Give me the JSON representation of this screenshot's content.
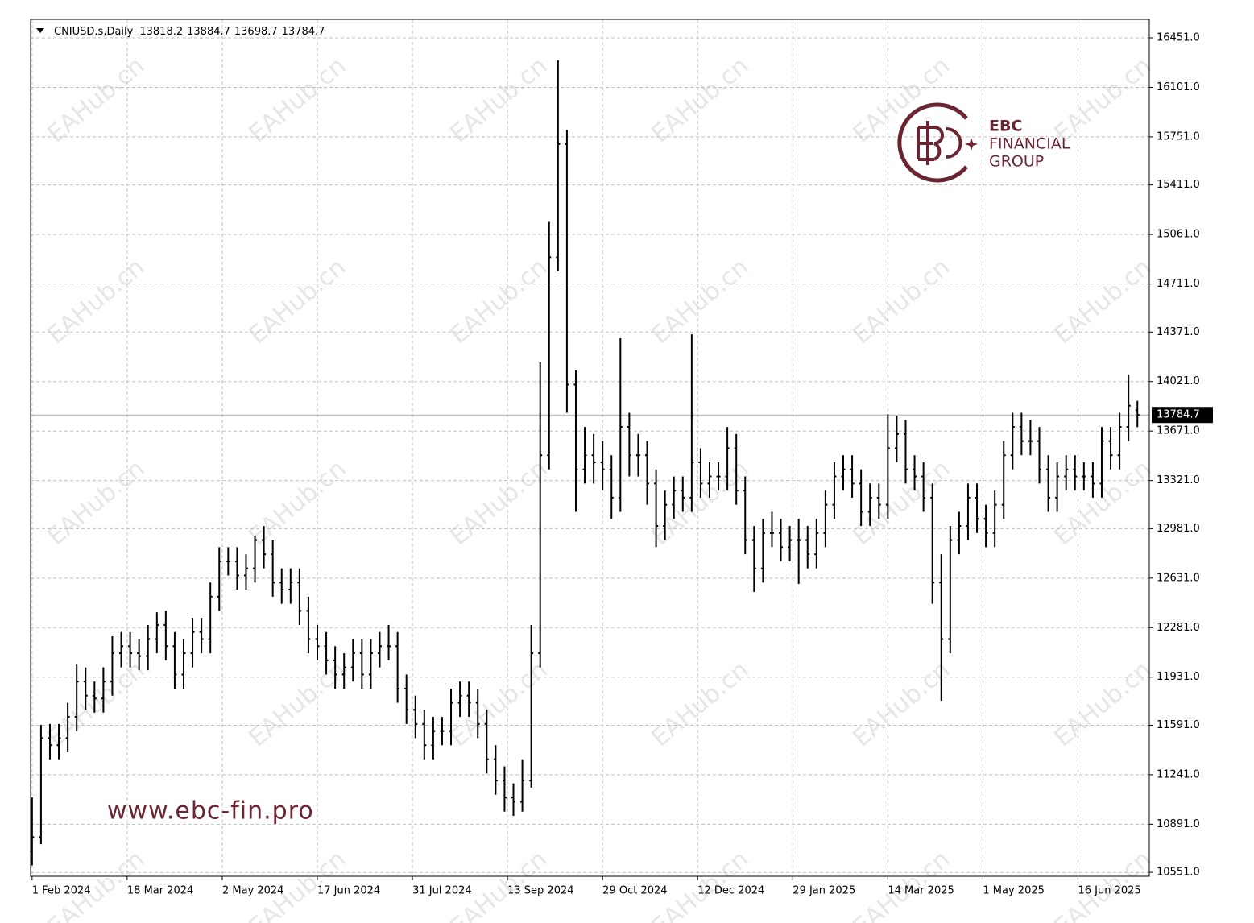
{
  "chart_data": {
    "type": "ohlc",
    "title": "CNIUSD.s,Daily",
    "watermark": "EAHub.cn",
    "annotations": [
      "www.ebc-fin.pro"
    ],
    "logo": [
      "EBC",
      "FINANCIAL",
      "GROUP"
    ],
    "color": "#000000",
    "grid": true,
    "current_price_line": true,
    "ylim": [
      10523,
      16582
    ],
    "xlim": [
      -0.5,
      376
    ],
    "yticks": [
      {
        "value": 16451,
        "label": "16451.0"
      },
      {
        "value": 16101,
        "label": "16101.0"
      },
      {
        "value": 15751,
        "label": "15751.0"
      },
      {
        "value": 15411,
        "label": "15411.0"
      },
      {
        "value": 15061,
        "label": "15061.0"
      },
      {
        "value": 14711,
        "label": "14711.0"
      },
      {
        "value": 14371,
        "label": "14371.0"
      },
      {
        "value": 14021,
        "label": "14021.0"
      },
      {
        "value": 13671,
        "label": "13671.0"
      },
      {
        "value": 13321,
        "label": "13321.0"
      },
      {
        "value": 12981,
        "label": "12981.0"
      },
      {
        "value": 12631,
        "label": "12631.0"
      },
      {
        "value": 12281,
        "label": "12281.0"
      },
      {
        "value": 11931,
        "label": "11931.0"
      },
      {
        "value": 11591,
        "label": "11591.0"
      },
      {
        "value": 11241,
        "label": "11241.0"
      },
      {
        "value": 10891,
        "label": "10891.0"
      },
      {
        "value": 10551,
        "label": "10551.0"
      }
    ],
    "xticks": [
      {
        "value": 0,
        "label": "1 Feb 2024"
      },
      {
        "value": 32,
        "label": "18 Mar 2024"
      },
      {
        "value": 64,
        "label": "2 May 2024"
      },
      {
        "value": 96,
        "label": "17 Jun 2024"
      },
      {
        "value": 128,
        "label": "31 Jul 2024"
      },
      {
        "value": 160,
        "label": "13 Sep 2024"
      },
      {
        "value": 192,
        "label": "29 Oct 2024"
      },
      {
        "value": 224,
        "label": "12 Dec 2024"
      },
      {
        "value": 256,
        "label": "29 Jan 2025"
      },
      {
        "value": 288,
        "label": "14 Mar 2025"
      },
      {
        "value": 320,
        "label": "1 May 2025"
      },
      {
        "value": 352,
        "label": "16 Jun 2025"
      }
    ],
    "x": [
      0,
      3,
      6,
      9,
      12,
      15,
      18,
      21,
      24,
      27,
      30,
      33,
      36,
      39,
      42,
      45,
      48,
      51,
      54,
      57,
      60,
      63,
      66,
      69,
      72,
      75,
      78,
      81,
      84,
      87,
      90,
      93,
      96,
      99,
      102,
      105,
      108,
      111,
      114,
      117,
      120,
      123,
      126,
      129,
      132,
      135,
      138,
      141,
      144,
      147,
      150,
      153,
      156,
      159,
      162,
      165,
      168,
      171,
      174,
      177,
      180,
      183,
      186,
      189,
      192,
      195,
      198,
      201,
      204,
      207,
      210,
      213,
      216,
      219,
      222,
      225,
      228,
      231,
      234,
      237,
      240,
      243,
      246,
      249,
      252,
      255,
      258,
      261,
      264,
      267,
      270,
      273,
      276,
      279,
      282,
      285,
      288,
      291,
      294,
      297,
      300,
      303,
      306,
      309,
      312,
      315,
      318,
      321,
      324,
      327,
      330,
      333,
      336,
      339,
      342,
      345,
      348,
      351,
      354,
      357,
      360,
      363,
      366,
      369,
      372
    ],
    "open": [
      10700,
      10800,
      11500,
      11450,
      11500,
      11650,
      11900,
      11800,
      11780,
      11900,
      12100,
      12150,
      12100,
      12080,
      12200,
      12300,
      12150,
      11950,
      12100,
      12250,
      12200,
      12500,
      12750,
      12750,
      12650,
      12700,
      12900,
      12800,
      12600,
      12550,
      12600,
      12400,
      12200,
      12150,
      12050,
      11950,
      12000,
      12100,
      11950,
      12100,
      12150,
      12150,
      11850,
      11700,
      11600,
      11450,
      11550,
      11550,
      11750,
      11800,
      11750,
      11600,
      11350,
      11200,
      11080,
      11050,
      11200,
      12100,
      13500,
      14900,
      15700,
      14000,
      13400,
      13500,
      13450,
      13400,
      13200,
      13700,
      13500,
      13500,
      13300,
      13000,
      13150,
      13250,
      13200,
      13450,
      13300,
      13350,
      13350,
      13550,
      13250,
      12900,
      12700,
      12950,
      12950,
      12850,
      12900,
      12900,
      12800,
      12950,
      13150,
      13350,
      13400,
      13300,
      13100,
      13200,
      13150,
      13550,
      13650,
      13400,
      13350,
      13200,
      12600,
      12200,
      12900,
      13000,
      13200,
      13050,
      12950,
      13150,
      13500,
      13700,
      13600,
      13600,
      13400,
      13200,
      13350,
      13400,
      13350,
      13350,
      13300,
      13600,
      13500,
      13700,
      13818.2
    ],
    "high": [
      11081,
      11593,
      11600,
      11600,
      11750,
      12020,
      12000,
      11900,
      12000,
      12220,
      12250,
      12250,
      12200,
      12300,
      12390,
      12400,
      12250,
      12200,
      12350,
      12350,
      12600,
      12850,
      12850,
      12850,
      12800,
      12932,
      13000,
      12900,
      12700,
      12700,
      12700,
      12500,
      12300,
      12250,
      12150,
      12100,
      12200,
      12200,
      12200,
      12250,
      12300,
      12250,
      11950,
      11800,
      11700,
      11650,
      11650,
      11850,
      11900,
      11900,
      11850,
      11700,
      11450,
      11300,
      11180,
      11350,
      12300,
      14156,
      15150,
      16292,
      15800,
      14100,
      13700,
      13650,
      13600,
      13500,
      14327,
      13800,
      13650,
      13600,
      13400,
      13250,
      13350,
      13350,
      14355,
      13550,
      13450,
      13450,
      13700,
      13650,
      13350,
      13000,
      13050,
      13100,
      13050,
      13000,
      13050,
      13000,
      13050,
      13250,
      13450,
      13500,
      13500,
      13400,
      13300,
      13300,
      13790,
      13780,
      13750,
      13500,
      13450,
      13300,
      12800,
      13000,
      13100,
      13300,
      13300,
      13150,
      13250,
      13600,
      13800,
      13800,
      13750,
      13700,
      13500,
      13450,
      13500,
      13500,
      13450,
      13450,
      13700,
      13700,
      13800,
      14070,
      13884.7
    ],
    "low": [
      10600,
      10750,
      11350,
      11350,
      11400,
      11550,
      11700,
      11680,
      11680,
      11800,
      12000,
      12000,
      11980,
      11980,
      12100,
      12050,
      11850,
      11850,
      12000,
      12100,
      12100,
      12400,
      12650,
      12550,
      12550,
      12600,
      12700,
      12500,
      12450,
      12450,
      12300,
      12100,
      12050,
      11950,
      11850,
      11850,
      11900,
      11850,
      11850,
      12000,
      12050,
      11750,
      11600,
      11500,
      11350,
      11350,
      11450,
      11450,
      11650,
      11650,
      11500,
      11250,
      11100,
      10980,
      10950,
      10980,
      11150,
      12000,
      13400,
      14800,
      13800,
      13100,
      13300,
      13300,
      13250,
      13050,
      13100,
      13350,
      13350,
      13150,
      12850,
      12900,
      13050,
      13100,
      13100,
      13200,
      13200,
      13250,
      13250,
      13150,
      12800,
      12533,
      12600,
      12850,
      12750,
      12750,
      12590,
      12700,
      12700,
      12850,
      13050,
      13250,
      13200,
      13000,
      13000,
      13050,
      13050,
      13450,
      13300,
      13250,
      13100,
      12450,
      11764,
      12100,
      12800,
      12900,
      12950,
      12850,
      12850,
      13050,
      13400,
      13500,
      13500,
      13300,
      13100,
      13100,
      13250,
      13250,
      13250,
      13200,
      13200,
      13400,
      13400,
      13600,
      13698.7
    ],
    "close": [
      10800,
      11500,
      11450,
      11500,
      11650,
      11900,
      11800,
      11780,
      11900,
      12100,
      12150,
      12100,
      12080,
      12200,
      12300,
      12150,
      11950,
      12100,
      12250,
      12200,
      12500,
      12750,
      12750,
      12650,
      12700,
      12900,
      12800,
      12600,
      12550,
      12600,
      12400,
      12200,
      12150,
      12050,
      11950,
      12000,
      12100,
      11950,
      12100,
      12150,
      12150,
      11850,
      11700,
      11600,
      11450,
      11550,
      11550,
      11750,
      11800,
      11750,
      11600,
      11350,
      11200,
      11080,
      11050,
      11200,
      12100,
      13500,
      14900,
      15700,
      14000,
      13400,
      13500,
      13450,
      13400,
      13200,
      13700,
      13500,
      13500,
      13300,
      13000,
      13150,
      13250,
      13200,
      13450,
      13300,
      13350,
      13350,
      13550,
      13250,
      12900,
      12700,
      12950,
      12950,
      12850,
      12900,
      12900,
      12800,
      12950,
      13150,
      13350,
      13400,
      13300,
      13100,
      13200,
      13150,
      13550,
      13650,
      13400,
      13350,
      13200,
      12600,
      12200,
      12900,
      13000,
      13200,
      13050,
      12950,
      13150,
      13500,
      13700,
      13600,
      13600,
      13400,
      13200,
      13350,
      13400,
      13350,
      13350,
      13300,
      13600,
      13500,
      13700,
      13850,
      13784.7
    ]
  }
}
